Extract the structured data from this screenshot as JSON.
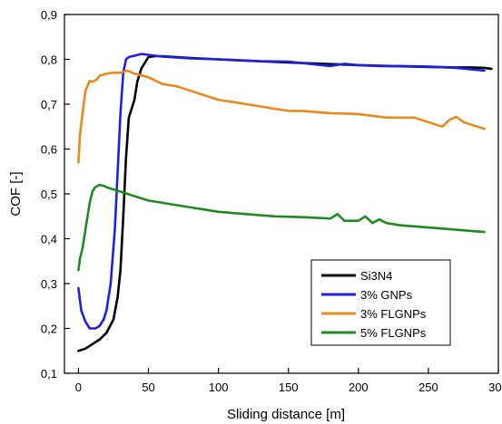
{
  "chart_data": {
    "type": "line",
    "title": "",
    "xlabel": "Sliding distance [m]",
    "ylabel": "COF [-]",
    "xlim": [
      -10,
      300
    ],
    "ylim": [
      0.1,
      0.9
    ],
    "x_ticks": [
      0,
      50,
      100,
      150,
      200,
      250,
      300
    ],
    "x_tick_labels": [
      "0",
      "50",
      "100",
      "150",
      "200",
      "250",
      "300"
    ],
    "y_ticks": [
      0.1,
      0.2,
      0.3,
      0.4,
      0.5,
      0.6,
      0.7,
      0.8,
      0.9
    ],
    "y_tick_labels": [
      "0,1",
      "0,2",
      "0,3",
      "0,4",
      "0,5",
      "0,6",
      "0,7",
      "0,8",
      "0,9"
    ],
    "grid": false,
    "legend_position": "bottom-right",
    "series": [
      {
        "name": "Si3N4",
        "color": "#000000",
        "x": [
          0,
          5,
          10,
          15,
          20,
          25,
          28,
          30,
          32,
          34,
          36,
          38,
          40,
          42,
          45,
          48,
          50,
          55,
          60,
          70,
          80,
          100,
          120,
          150,
          175,
          200,
          225,
          250,
          270,
          280,
          290,
          295
        ],
        "y": [
          0.15,
          0.155,
          0.165,
          0.175,
          0.19,
          0.22,
          0.27,
          0.33,
          0.45,
          0.58,
          0.67,
          0.69,
          0.71,
          0.75,
          0.78,
          0.795,
          0.805,
          0.807,
          0.807,
          0.805,
          0.803,
          0.8,
          0.797,
          0.793,
          0.79,
          0.787,
          0.785,
          0.783,
          0.782,
          0.782,
          0.781,
          0.779
        ]
      },
      {
        "name": "3% GNPs",
        "color": "#1f1fe0",
        "x": [
          0,
          2,
          5,
          8,
          10,
          12,
          15,
          18,
          20,
          23,
          26,
          28,
          30,
          32,
          34,
          36,
          40,
          45,
          50,
          60,
          80,
          100,
          130,
          150,
          165,
          180,
          190,
          200,
          215,
          230,
          250,
          270,
          280,
          290
        ],
        "y": [
          0.29,
          0.24,
          0.215,
          0.2,
          0.2,
          0.2,
          0.205,
          0.22,
          0.24,
          0.3,
          0.42,
          0.55,
          0.68,
          0.77,
          0.8,
          0.805,
          0.808,
          0.812,
          0.81,
          0.806,
          0.802,
          0.8,
          0.796,
          0.795,
          0.79,
          0.785,
          0.79,
          0.787,
          0.785,
          0.785,
          0.784,
          0.781,
          0.778,
          0.775
        ]
      },
      {
        "name": "3% FLGNPs",
        "color": "#e8891e",
        "x": [
          0,
          1,
          3,
          5,
          8,
          10,
          13,
          15,
          20,
          25,
          30,
          35,
          40,
          50,
          60,
          70,
          80,
          90,
          100,
          120,
          140,
          150,
          160,
          180,
          200,
          220,
          240,
          250,
          260,
          265,
          270,
          275,
          280,
          290
        ],
        "y": [
          0.57,
          0.63,
          0.68,
          0.73,
          0.752,
          0.75,
          0.755,
          0.763,
          0.768,
          0.77,
          0.77,
          0.775,
          0.768,
          0.76,
          0.745,
          0.74,
          0.73,
          0.72,
          0.71,
          0.7,
          0.69,
          0.685,
          0.685,
          0.68,
          0.678,
          0.67,
          0.67,
          0.66,
          0.65,
          0.665,
          0.672,
          0.66,
          0.655,
          0.645
        ]
      },
      {
        "name": "5% FLGNPs",
        "color": "#1f8a24",
        "x": [
          0,
          1,
          3,
          5,
          8,
          10,
          12,
          15,
          18,
          20,
          25,
          30,
          40,
          50,
          60,
          70,
          80,
          90,
          100,
          120,
          140,
          160,
          180,
          185,
          190,
          200,
          205,
          210,
          215,
          220,
          230,
          250,
          270,
          290
        ],
        "y": [
          0.33,
          0.355,
          0.38,
          0.42,
          0.48,
          0.505,
          0.515,
          0.52,
          0.518,
          0.515,
          0.51,
          0.505,
          0.495,
          0.485,
          0.48,
          0.475,
          0.47,
          0.465,
          0.46,
          0.455,
          0.45,
          0.448,
          0.445,
          0.455,
          0.44,
          0.44,
          0.45,
          0.435,
          0.443,
          0.435,
          0.43,
          0.425,
          0.42,
          0.415
        ]
      }
    ]
  }
}
